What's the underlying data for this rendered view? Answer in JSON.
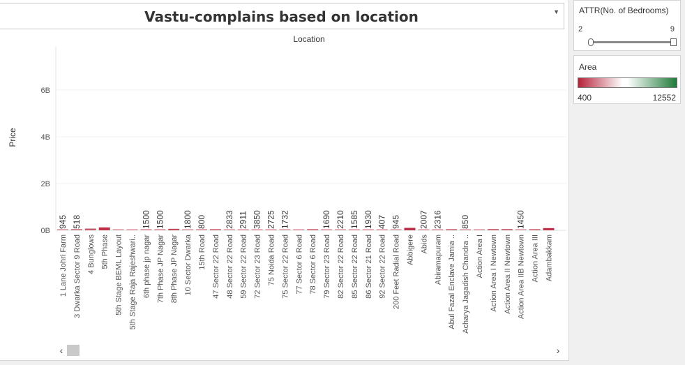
{
  "title": "Vastu-complains based on location",
  "legend": {
    "attr_title": "ATTR(No. of Bedrooms)",
    "attr_min": "2",
    "attr_max": "9",
    "area_title": "Area",
    "area_min": "400",
    "area_max": "12552",
    "area_colors": [
      "#b6223a",
      "#ffffff",
      "#1f7a3a"
    ]
  },
  "chart_data": {
    "type": "bar",
    "title": "Vastu-complains based on location",
    "header": "Location",
    "ylabel": "Price",
    "ylim": [
      0,
      7.8
    ],
    "yticks": [
      "0B",
      "2B",
      "4B",
      "6B"
    ],
    "ytick_values": [
      0,
      2,
      4,
      6
    ],
    "grid": true,
    "legend_placement": "right",
    "categories": [
      "1 Lane Johri Farm",
      "3 Dwarka Sector 9 Road",
      "4 Bunglows",
      "5th Phase",
      "5th Stage BEML Layout",
      "5th Stage Raja Rajeshwari..",
      "6th phase jp nagar",
      "7th Phase JP Nagar",
      "8th Phase JP Nagar",
      "10 Sector Dwarka",
      "15th Road",
      "47 Sector 22 Road",
      "48 Sector 22 Road",
      "59 Sector 22 Road",
      "72 Sector 23 Road",
      "75 Noida Road",
      "75 Sector 22 Road",
      "77 Sector 6 Road",
      "78 Sector 6 Road",
      "79 Sector 23 Road",
      "82 Sector 22 Road",
      "85 Sector 22 Road",
      "86 Sector 21 Road",
      "92 Sector 22 Road",
      "200 Feet Radial Road",
      "Abbigere",
      "Abids",
      "Abiramapuram",
      "Abul Fazal Enclave Jamia ..",
      "Acharya Jagadish Chandra ..",
      "Action Area I",
      "Action Area I Newtown",
      "Action Area II Newtown",
      "Action Area IIB Newtown",
      "Action Area III",
      "Adambakkam"
    ],
    "values": [
      0.01,
      0.01,
      0.03,
      0.08,
      0.005,
      0.005,
      0.01,
      0.01,
      0.02,
      0.005,
      0.01,
      0.005,
      0.005,
      0.005,
      0.005,
      0.005,
      0.005,
      0.005,
      0.005,
      0.005,
      0.005,
      0.005,
      0.005,
      0.005,
      0.005,
      0.06,
      0.005,
      0.005,
      0.005,
      0.005,
      0.005,
      0.01,
      0.01,
      0.005,
      0.005,
      0.05
    ],
    "bar_labels": [
      "945",
      "518",
      "",
      "",
      "",
      "",
      "1500",
      "1500",
      "",
      "1800",
      "800",
      "",
      "2833",
      "2911",
      "3850",
      "2725",
      "1732",
      "",
      "",
      "1690",
      "2210",
      "1585",
      "1930",
      "407",
      "945",
      "",
      "2007",
      "2316",
      "",
      "850",
      "",
      "",
      "",
      "1450",
      "",
      ""
    ],
    "bar_colors": [
      "#d9a0a8",
      "#cc7a86",
      "#c55a6a",
      "#c03048",
      "#dc9aa6",
      "#dc9aa6",
      "#dc9aa6",
      "#dc9aa6",
      "#c44a5c",
      "#dc9aa6",
      "#dc9aa6",
      "#c86070",
      "#dc9aa6",
      "#dc9aa6",
      "#dc9aa6",
      "#dc9aa6",
      "#dc9aa6",
      "#dc9aa6",
      "#c86070",
      "#dc9aa6",
      "#dc9aa6",
      "#dc9aa6",
      "#dc9aa6",
      "#dc9aa6",
      "#dc9aa6",
      "#b83048",
      "#dc9aa6",
      "#dc9aa6",
      "#c86070",
      "#dc9aa6",
      "#dc9aa6",
      "#c86070",
      "#c86070",
      "#dc9aa6",
      "#c86070",
      "#c03048"
    ]
  },
  "scrollbar": {
    "left_arrow": "‹",
    "right_arrow": "›"
  },
  "title_dropdown_icon": "▼"
}
